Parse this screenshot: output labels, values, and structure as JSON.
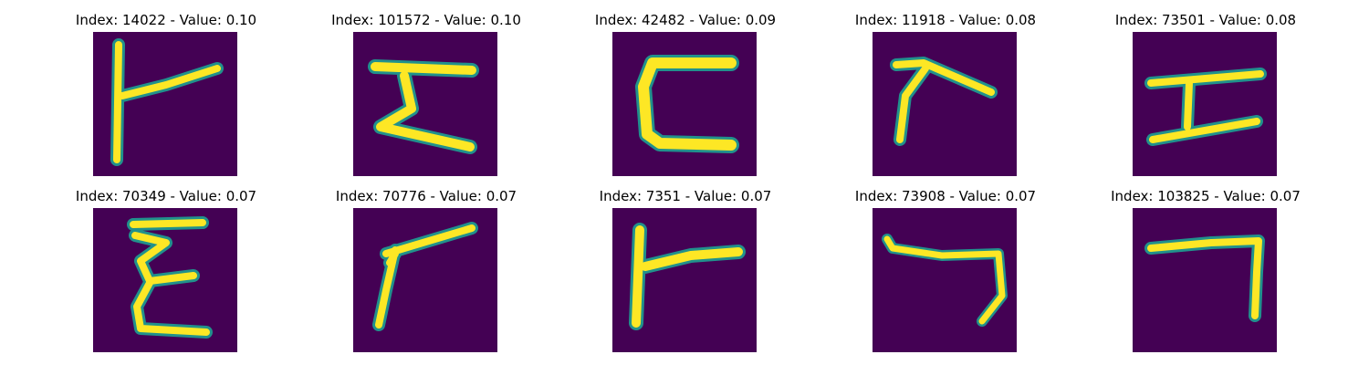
{
  "figure": {
    "colormap": "viridis",
    "background_color": "#440154",
    "stroke_color": "#fde725",
    "panels": [
      {
        "title": "Index: 14022 - Value: 0.10",
        "index": 14022,
        "value": 0.1
      },
      {
        "title": "Index: 101572 - Value: 0.10",
        "index": 101572,
        "value": 0.1
      },
      {
        "title": "Index: 42482 - Value: 0.09",
        "index": 42482,
        "value": 0.09
      },
      {
        "title": "Index: 11918 - Value: 0.08",
        "index": 11918,
        "value": 0.08
      },
      {
        "title": "Index: 73501 - Value: 0.08",
        "index": 73501,
        "value": 0.08
      },
      {
        "title": "Index: 70349 - Value: 0.07",
        "index": 70349,
        "value": 0.07
      },
      {
        "title": "Index: 70776 - Value: 0.07",
        "index": 70776,
        "value": 0.07
      },
      {
        "title": "Index: 7351 - Value: 0.07",
        "index": 7351,
        "value": 0.07
      },
      {
        "title": "Index: 73908 - Value: 0.07",
        "index": 73908,
        "value": 0.07
      },
      {
        "title": "Index: 103825 - Value: 0.07",
        "index": 103825,
        "value": 0.07
      }
    ]
  }
}
